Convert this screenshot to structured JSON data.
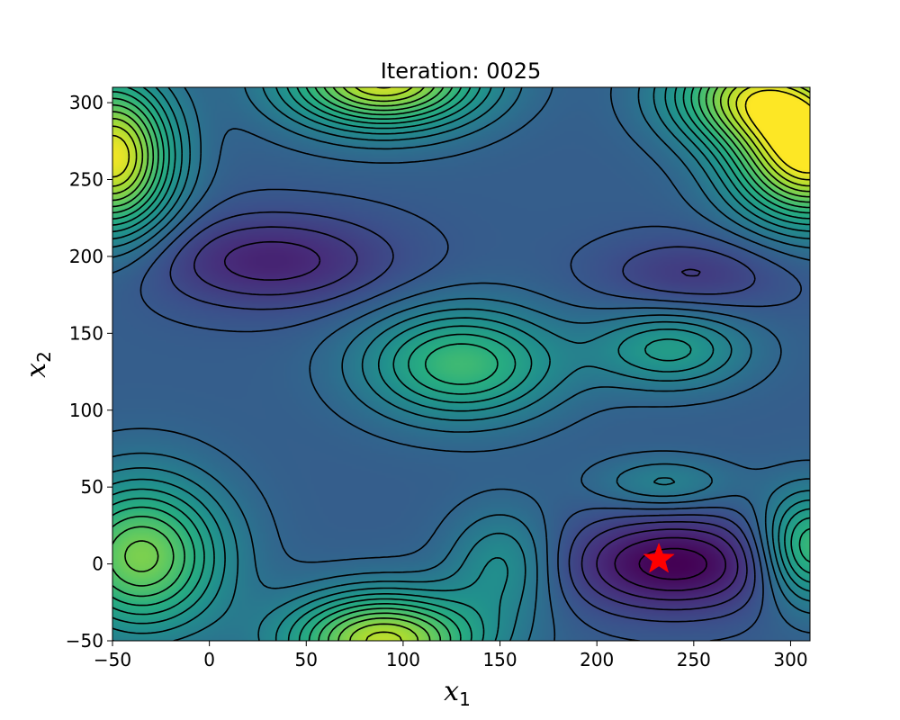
{
  "chart_data": {
    "type": "heatmap",
    "title": "Iteration: 0025",
    "xlabel": {
      "base": "x",
      "sub": "1"
    },
    "ylabel": {
      "base": "x",
      "sub": "2"
    },
    "xlim": [
      -50,
      310
    ],
    "ylim": [
      -50,
      310
    ],
    "xticks": [
      -50,
      0,
      50,
      100,
      150,
      200,
      250,
      300
    ],
    "yticks": [
      -50,
      0,
      50,
      100,
      150,
      200,
      250,
      300
    ],
    "xtick_labels": [
      "−50",
      "0",
      "50",
      "100",
      "150",
      "200",
      "250",
      "300"
    ],
    "ytick_labels": [
      "−50",
      "0",
      "50",
      "100",
      "150",
      "200",
      "250",
      "300"
    ],
    "colormap": "viridis",
    "contour_style": "black dashed",
    "baseline_level": 0.3,
    "field_peaks": [
      {
        "x": 90,
        "y": 315,
        "level": 0.95,
        "sx": 35,
        "sy": 22
      },
      {
        "x": -50,
        "y": 265,
        "level": 0.98,
        "sx": 22,
        "sy": 35
      },
      {
        "x": 310,
        "y": 265,
        "level": 1.0,
        "sx": 28,
        "sy": 30
      },
      {
        "x": 280,
        "y": 305,
        "level": 0.82,
        "sx": 30,
        "sy": 22
      },
      {
        "x": 32,
        "y": 197,
        "level": 0.1,
        "sx": 45,
        "sy": 22
      },
      {
        "x": 250,
        "y": 188,
        "level": 0.17,
        "sx": 35,
        "sy": 18
      },
      {
        "x": 130,
        "y": 130,
        "level": 0.68,
        "sx": 35,
        "sy": 25
      },
      {
        "x": 238,
        "y": 140,
        "level": 0.55,
        "sx": 28,
        "sy": 18
      },
      {
        "x": 240,
        "y": 0,
        "level": 0.0,
        "sx": 40,
        "sy": 22
      },
      {
        "x": 235,
        "y": 52,
        "level": 0.45,
        "sx": 25,
        "sy": 12
      },
      {
        "x": 90,
        "y": -50,
        "level": 0.9,
        "sx": 35,
        "sy": 22
      },
      {
        "x": -35,
        "y": 5,
        "level": 0.8,
        "sx": 30,
        "sy": 35
      },
      {
        "x": 310,
        "y": 10,
        "level": 0.72,
        "sx": 18,
        "sy": 25
      },
      {
        "x": 152,
        "y": 0,
        "level": 0.5,
        "sx": 20,
        "sy": 25
      }
    ],
    "marker": {
      "shape": "star",
      "color": "#ff0000",
      "x": 232,
      "y": 3
    }
  }
}
